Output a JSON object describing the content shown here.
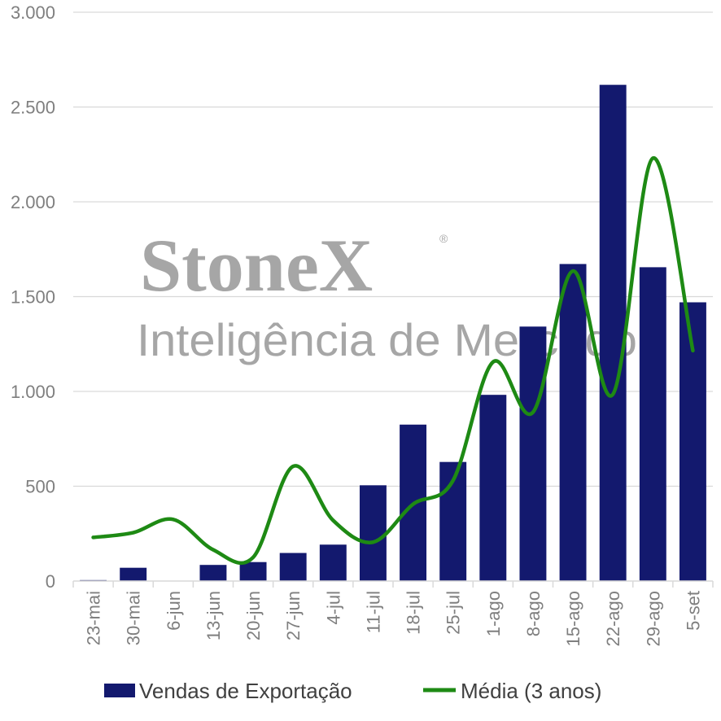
{
  "watermark": {
    "brand": "StoneX",
    "registered": "®",
    "subtitle": "Inteligência de Mercado"
  },
  "chart_data": {
    "type": "bar",
    "categories": [
      "23-mai",
      "30-mai",
      "6-jun",
      "13-jun",
      "20-jun",
      "27-jun",
      "4-jul",
      "11-jul",
      "18-jul",
      "25-jul",
      "1-ago",
      "8-ago",
      "15-ago",
      "22-ago",
      "29-ago",
      "5-set"
    ],
    "ylim": [
      0,
      3000
    ],
    "yticks": [
      0,
      500,
      1000,
      1500,
      2000,
      2500,
      3000
    ],
    "ytick_labels": [
      "0",
      "500",
      "1.000",
      "1.500",
      "2.000",
      "2.500",
      "3.000"
    ],
    "grid": true,
    "legend_position": "bottom",
    "series": [
      {
        "name": "Vendas de Exportação",
        "type": "bar",
        "color": "#13196e",
        "values": [
          5,
          70,
          0,
          85,
          100,
          148,
          192,
          505,
          825,
          628,
          982,
          1342,
          1672,
          2617,
          1655,
          1470
        ]
      },
      {
        "name": "Média (3 anos)",
        "type": "line",
        "smooth": true,
        "color": "#1e8a14",
        "values": [
          230,
          255,
          325,
          165,
          125,
          605,
          320,
          205,
          405,
          530,
          1155,
          890,
          1635,
          985,
          2230,
          1215
        ]
      }
    ]
  }
}
